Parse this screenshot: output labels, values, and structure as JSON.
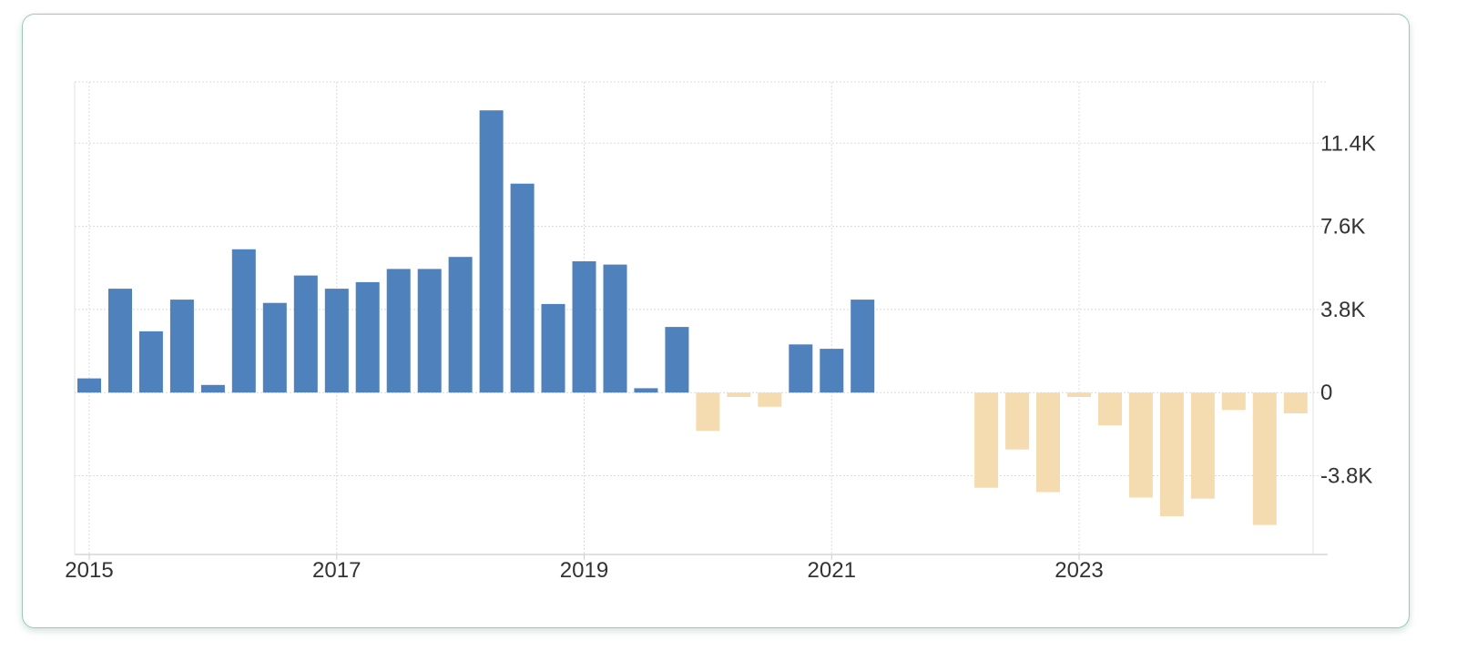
{
  "chart_data": {
    "type": "bar",
    "title": "",
    "xlabel": "",
    "ylabel": "",
    "x_tick_labels": [
      "2015",
      "2017",
      "2019",
      "2021",
      "2023"
    ],
    "y_tick_labels": [
      "11.4K",
      "7.6K",
      "3.8K",
      "0",
      "-3.8K"
    ],
    "y_ticks": [
      11400,
      7600,
      3800,
      0,
      -3800
    ],
    "ylim": [
      -7400,
      14200
    ],
    "xlim": [
      "2014-12",
      "2024-12"
    ],
    "grid": true,
    "colors": {
      "positive": "#4f81bd",
      "negative": "#f5dcb0",
      "grid": "#dcdcdc",
      "axis": "#e0e0e0"
    },
    "dates": [
      "2015-01",
      "2015-04",
      "2015-07",
      "2015-10",
      "2016-01",
      "2016-04",
      "2016-07",
      "2016-10",
      "2017-01",
      "2017-04",
      "2017-07",
      "2017-10",
      "2018-01",
      "2018-04",
      "2018-07",
      "2018-10",
      "2019-01",
      "2019-04",
      "2019-07",
      "2019-10",
      "2020-01",
      "2020-04",
      "2020-07",
      "2020-10",
      "2021-01",
      "2021-04",
      "2022-04",
      "2022-07",
      "2022-10",
      "2023-01",
      "2023-04",
      "2023-07",
      "2023-10",
      "2024-01",
      "2024-04",
      "2024-07",
      "2024-10"
    ],
    "values": [
      650,
      4750,
      2800,
      4250,
      350,
      6550,
      4100,
      5350,
      4750,
      5050,
      5650,
      5650,
      6200,
      12900,
      9550,
      4050,
      6000,
      5850,
      200,
      3000,
      -1750,
      -200,
      -650,
      2200,
      2000,
      4250,
      -4350,
      -2600,
      -4550,
      -200,
      -1500,
      -4800,
      -5650,
      -4850,
      -800,
      -6050,
      -950
    ]
  }
}
